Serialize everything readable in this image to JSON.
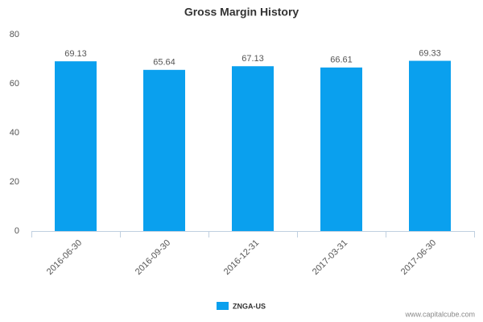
{
  "chart_data": {
    "type": "bar",
    "title": "Gross Margin History",
    "categories": [
      "2016-06-30",
      "2016-09-30",
      "2016-12-31",
      "2017-03-31",
      "2017-06-30"
    ],
    "series": [
      {
        "name": "ZNGA-US",
        "color": "#0aa0ee",
        "values": [
          69.13,
          65.64,
          67.13,
          66.61,
          69.33
        ]
      }
    ],
    "ylim": [
      0,
      80
    ],
    "yticks": [
      0,
      20,
      40,
      60,
      80
    ],
    "grid": false,
    "legend": "bottom",
    "watermark": "www.capitalcube.com"
  }
}
